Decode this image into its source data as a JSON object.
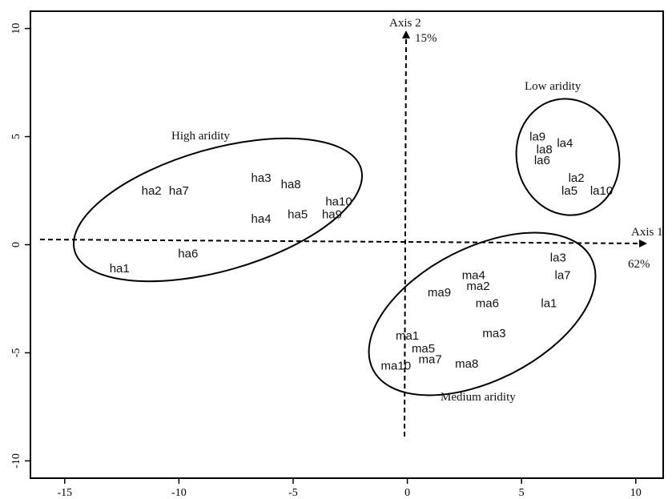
{
  "chart_data": {
    "type": "scatter",
    "xlim": [
      -16.5,
      11.2
    ],
    "ylim": [
      -10.8,
      10.8
    ],
    "x_ticks": [
      "-15",
      "-10",
      "-5",
      "0",
      "5",
      "10"
    ],
    "y_ticks": [
      "-10",
      "-5",
      "0",
      "5",
      "10"
    ],
    "grid": false,
    "axis1": {
      "label": "Axis 1",
      "percent": "62%"
    },
    "axis2": {
      "label": "Axis 2",
      "percent": "15%"
    },
    "groups": [
      {
        "name": "High aridity",
        "points": [
          {
            "label": "ha1",
            "x": -12.6,
            "y": -1.1
          },
          {
            "label": "ha2",
            "x": -11.2,
            "y": 2.5
          },
          {
            "label": "ha3",
            "x": -6.4,
            "y": 3.1
          },
          {
            "label": "ha4",
            "x": -6.4,
            "y": 1.2
          },
          {
            "label": "ha5",
            "x": -4.8,
            "y": 1.4
          },
          {
            "label": "ha6",
            "x": -9.6,
            "y": -0.4
          },
          {
            "label": "ha7",
            "x": -10.0,
            "y": 2.5
          },
          {
            "label": "ha8",
            "x": -5.1,
            "y": 2.8
          },
          {
            "label": "ha9",
            "x": -3.3,
            "y": 1.4
          },
          {
            "label": "ha10",
            "x": -3.0,
            "y": 2.0
          }
        ]
      },
      {
        "name": "Low aridity",
        "points": [
          {
            "label": "la1",
            "x": 6.2,
            "y": -2.7
          },
          {
            "label": "la2",
            "x": 7.4,
            "y": 3.1
          },
          {
            "label": "la3",
            "x": 6.6,
            "y": -0.6
          },
          {
            "label": "la4",
            "x": 6.9,
            "y": 4.7
          },
          {
            "label": "la5",
            "x": 7.1,
            "y": 2.5
          },
          {
            "label": "la6",
            "x": 5.9,
            "y": 3.9
          },
          {
            "label": "la7",
            "x": 6.8,
            "y": -1.4
          },
          {
            "label": "la8",
            "x": 6.0,
            "y": 4.4
          },
          {
            "label": "la9",
            "x": 5.7,
            "y": 5.0
          },
          {
            "label": "la10",
            "x": 8.5,
            "y": 2.5
          }
        ]
      },
      {
        "name": "Medium aridity",
        "points": [
          {
            "label": "ma1",
            "x": 0.0,
            "y": -4.2
          },
          {
            "label": "ma2",
            "x": 3.1,
            "y": -1.9
          },
          {
            "label": "ma3",
            "x": 3.8,
            "y": -4.1
          },
          {
            "label": "ma4",
            "x": 2.9,
            "y": -1.4
          },
          {
            "label": "ma5",
            "x": 0.7,
            "y": -4.8
          },
          {
            "label": "ma6",
            "x": 3.5,
            "y": -2.7
          },
          {
            "label": "ma7",
            "x": 1.0,
            "y": -5.3
          },
          {
            "label": "ma8",
            "x": 2.6,
            "y": -5.5
          },
          {
            "label": "ma9",
            "x": 1.4,
            "y": -2.2
          },
          {
            "label": "ma10",
            "x": -0.5,
            "y": -5.6
          }
        ]
      }
    ]
  }
}
